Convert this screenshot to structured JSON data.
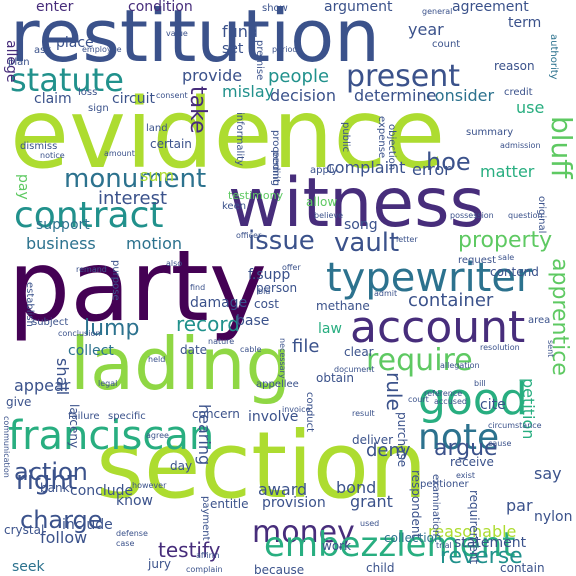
{
  "words": [
    "restitution",
    "evidence",
    "witness",
    "party",
    "lading",
    "section",
    "account",
    "typewriter",
    "good",
    "franciscan",
    "note",
    "contract",
    "statute",
    "present",
    "money",
    "embezzlement",
    "charge",
    "monument",
    "vault",
    "issue",
    "require",
    "right",
    "action",
    "bluff",
    "property",
    "lump",
    "record",
    "interest",
    "business",
    "motion",
    "container",
    "argue",
    "people",
    "apprentice",
    "hoe",
    "deny",
    "testify",
    "award",
    "bond",
    "grant",
    "reasonable",
    "matter",
    "complaint",
    "error",
    "consider",
    "decision",
    "determine",
    "provide",
    "mislay",
    "take",
    "sum",
    "year",
    "use",
    "fund",
    "set",
    "enter",
    "condition",
    "argument",
    "agreement",
    "term",
    "allege",
    "circuit",
    "claim",
    "place",
    "ask",
    "count",
    "reason",
    "pay",
    "support",
    "song",
    "f.supp",
    "person",
    "damage",
    "base",
    "cost",
    "methane",
    "contend",
    "law",
    "file",
    "collect",
    "date",
    "hearing",
    "rule",
    "cite",
    "appear",
    "give",
    "shall",
    "petition",
    "concern",
    "involve",
    "deliver",
    "purchase",
    "receive",
    "include",
    "know",
    "conclude",
    "bank",
    "day",
    "follow",
    "seek",
    "jury",
    "because",
    "child",
    "collection",
    "reverse",
    "statement",
    "contain",
    "say",
    "par",
    "nylon",
    "testimony",
    "allow",
    "certain",
    "land",
    "apply",
    "clear",
    "larceny",
    "crystal",
    "obtain",
    "provision",
    "entitle",
    "payment",
    "work",
    "respondent",
    "examination",
    "requirement",
    "credit",
    "authority",
    "show",
    "premise",
    "general",
    "value",
    "loss",
    "sign",
    "plan",
    "period",
    "employee",
    "dismiss",
    "notice",
    "officer",
    "remand",
    "subject",
    "however",
    "agree",
    "defense",
    "complain",
    "believe",
    "possession",
    "original",
    "admission",
    "summary",
    "objection",
    "expense",
    "proceeding",
    "informality",
    "public",
    "permit",
    "keen",
    "request",
    "establish",
    "purpose",
    "admit",
    "resolution",
    "area",
    "circumstance",
    "appellee",
    "conduct",
    "necessary",
    "failure",
    "specific",
    "petitioner",
    "court",
    "result",
    "accused",
    "invoice",
    "legal",
    "consent",
    "exist",
    "find",
    "bill",
    "allegation",
    "conclusion",
    "communication",
    "sale",
    "offer",
    "affirm",
    "reference",
    "document",
    "question",
    "held",
    "trial",
    "sent",
    "bid",
    "cable",
    "cause",
    "nature",
    "amount",
    "also",
    "case",
    "used",
    "letter"
  ]
}
